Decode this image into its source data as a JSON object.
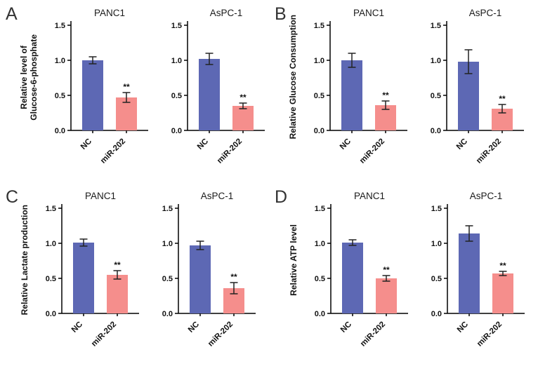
{
  "panels": [
    {
      "label": "A",
      "ylabel_lines": [
        "Relative level of",
        "Glucose-6-phosphate"
      ]
    },
    {
      "label": "B",
      "ylabel_lines": [
        "Relative Glucose Consumption"
      ]
    },
    {
      "label": "C",
      "ylabel_lines": [
        "Relative Lactate production"
      ]
    },
    {
      "label": "D",
      "ylabel_lines": [
        "Relative ATP level"
      ]
    }
  ],
  "colors": {
    "nc_bar": "#5d68b4",
    "mir_bar": "#f58e8c",
    "axis": "#000000",
    "error_bar": "#222222",
    "text": "#111111"
  },
  "chart_data": [
    {
      "type": "bar",
      "panel": "A",
      "title": "PANC1",
      "ylabel": "Relative level of Glucose-6-phosphate",
      "categories": [
        "NC",
        "miR-202"
      ],
      "values": [
        1.0,
        0.47
      ],
      "errors": [
        0.05,
        0.07
      ],
      "significance": [
        "",
        "**"
      ],
      "ylim": [
        0,
        1.5
      ],
      "yticks": [
        0,
        0.5,
        1,
        1.5
      ],
      "grid": false,
      "legend": "none"
    },
    {
      "type": "bar",
      "panel": "A",
      "title": "AsPC-1",
      "ylabel": "Relative level of Glucose-6-phosphate",
      "categories": [
        "NC",
        "miR-202"
      ],
      "values": [
        1.02,
        0.35
      ],
      "errors": [
        0.08,
        0.04
      ],
      "significance": [
        "",
        "**"
      ],
      "ylim": [
        0,
        1.5
      ],
      "yticks": [
        0,
        0.5,
        1,
        1.5
      ],
      "grid": false,
      "legend": "none"
    },
    {
      "type": "bar",
      "panel": "B",
      "title": "PANC1",
      "ylabel": "Relative Glucose Consumption",
      "categories": [
        "NC",
        "miR-202"
      ],
      "values": [
        1.0,
        0.36
      ],
      "errors": [
        0.1,
        0.06
      ],
      "significance": [
        "",
        "**"
      ],
      "ylim": [
        0,
        1.5
      ],
      "yticks": [
        0,
        0.5,
        1,
        1.5
      ],
      "grid": false,
      "legend": "none"
    },
    {
      "type": "bar",
      "panel": "B",
      "title": "AsPC-1",
      "ylabel": "Relative Glucose Consumption",
      "categories": [
        "NC",
        "miR-202"
      ],
      "values": [
        0.98,
        0.31
      ],
      "errors": [
        0.17,
        0.06
      ],
      "significance": [
        "",
        "**"
      ],
      "ylim": [
        0,
        1.5
      ],
      "yticks": [
        0,
        0.5,
        1,
        1.5
      ],
      "grid": false,
      "legend": "none"
    },
    {
      "type": "bar",
      "panel": "C",
      "title": "PANC1",
      "ylabel": "Relative Lactate production",
      "categories": [
        "NC",
        "miR-202"
      ],
      "values": [
        1.01,
        0.55
      ],
      "errors": [
        0.05,
        0.06
      ],
      "significance": [
        "",
        "**"
      ],
      "ylim": [
        0,
        1.5
      ],
      "yticks": [
        0,
        0.5,
        1,
        1.5
      ],
      "grid": false,
      "legend": "none"
    },
    {
      "type": "bar",
      "panel": "C",
      "title": "AsPC-1",
      "ylabel": "Relative Lactate production",
      "categories": [
        "NC",
        "miR-202"
      ],
      "values": [
        0.97,
        0.36
      ],
      "errors": [
        0.06,
        0.08
      ],
      "significance": [
        "",
        "**"
      ],
      "ylim": [
        0,
        1.5
      ],
      "yticks": [
        0,
        0.5,
        1,
        1.5
      ],
      "grid": false,
      "legend": "none"
    },
    {
      "type": "bar",
      "panel": "D",
      "title": "PANC1",
      "ylabel": "Relative ATP level",
      "categories": [
        "NC",
        "miR-202"
      ],
      "values": [
        1.01,
        0.5
      ],
      "errors": [
        0.04,
        0.04
      ],
      "significance": [
        "",
        "**"
      ],
      "ylim": [
        0,
        1.5
      ],
      "yticks": [
        0,
        0.5,
        1,
        1.5
      ],
      "grid": false,
      "legend": "none"
    },
    {
      "type": "bar",
      "panel": "D",
      "title": "AsPC-1",
      "ylabel": "Relative ATP level",
      "categories": [
        "NC",
        "miR-202"
      ],
      "values": [
        1.14,
        0.57
      ],
      "errors": [
        0.11,
        0.03
      ],
      "significance": [
        "",
        "**"
      ],
      "ylim": [
        0,
        1.5
      ],
      "yticks": [
        0,
        0.5,
        1,
        1.5
      ],
      "grid": false,
      "legend": "none"
    }
  ]
}
